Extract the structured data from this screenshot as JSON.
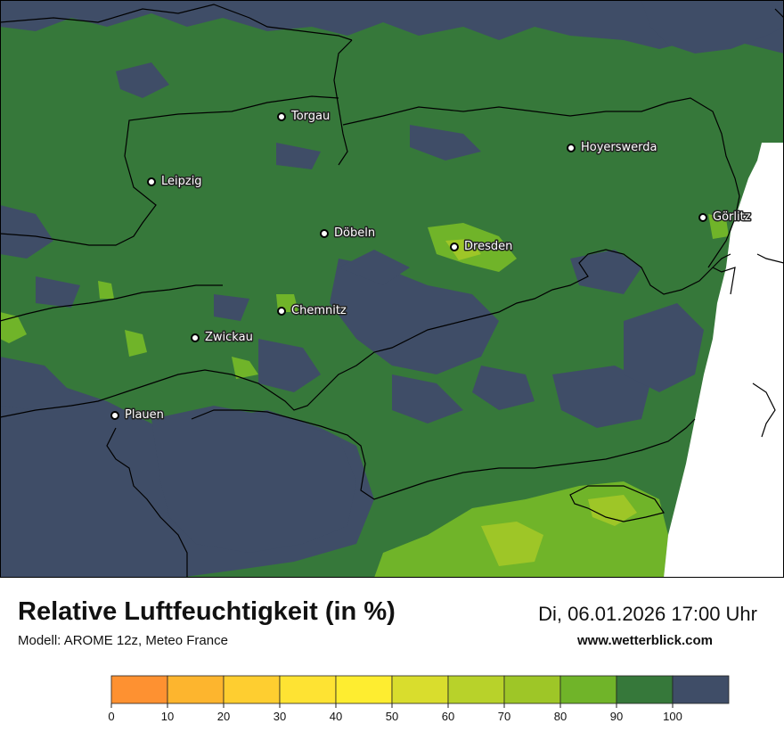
{
  "map": {
    "colors": {
      "rh_90_100": "#3f4d67",
      "rh_80_90": "#36783a",
      "rh_70_80": "#70b429",
      "rh_60_70": "#9ec627",
      "white_area": "#ffffff",
      "border": "#000000"
    },
    "cities": [
      {
        "name": "Torgau"
      },
      {
        "name": "Hoyerswerda"
      },
      {
        "name": "Leipzig"
      },
      {
        "name": "Döbeln"
      },
      {
        "name": "Dresden"
      },
      {
        "name": "Görlitz"
      },
      {
        "name": "Chemnitz"
      },
      {
        "name": "Zwickau"
      },
      {
        "name": "Plauen"
      }
    ]
  },
  "footer": {
    "title": "Relative Luftfeuchtigkeit (in %)",
    "subtitle": "Modell: AROME 12z, Meteo France",
    "datetime": "Di, 06.01.2026 17:00 Uhr",
    "website": "www.wetterblick.com"
  },
  "legend": {
    "ticks": [
      "0",
      "10",
      "20",
      "30",
      "40",
      "50",
      "60",
      "70",
      "80",
      "90",
      "100"
    ],
    "colors": [
      "#fe9131",
      "#fdb52e",
      "#fece30",
      "#fee333",
      "#feed30",
      "#d9dd2d",
      "#b8d22a",
      "#9ec627",
      "#70b429",
      "#36783a",
      "#3f4d67"
    ]
  }
}
